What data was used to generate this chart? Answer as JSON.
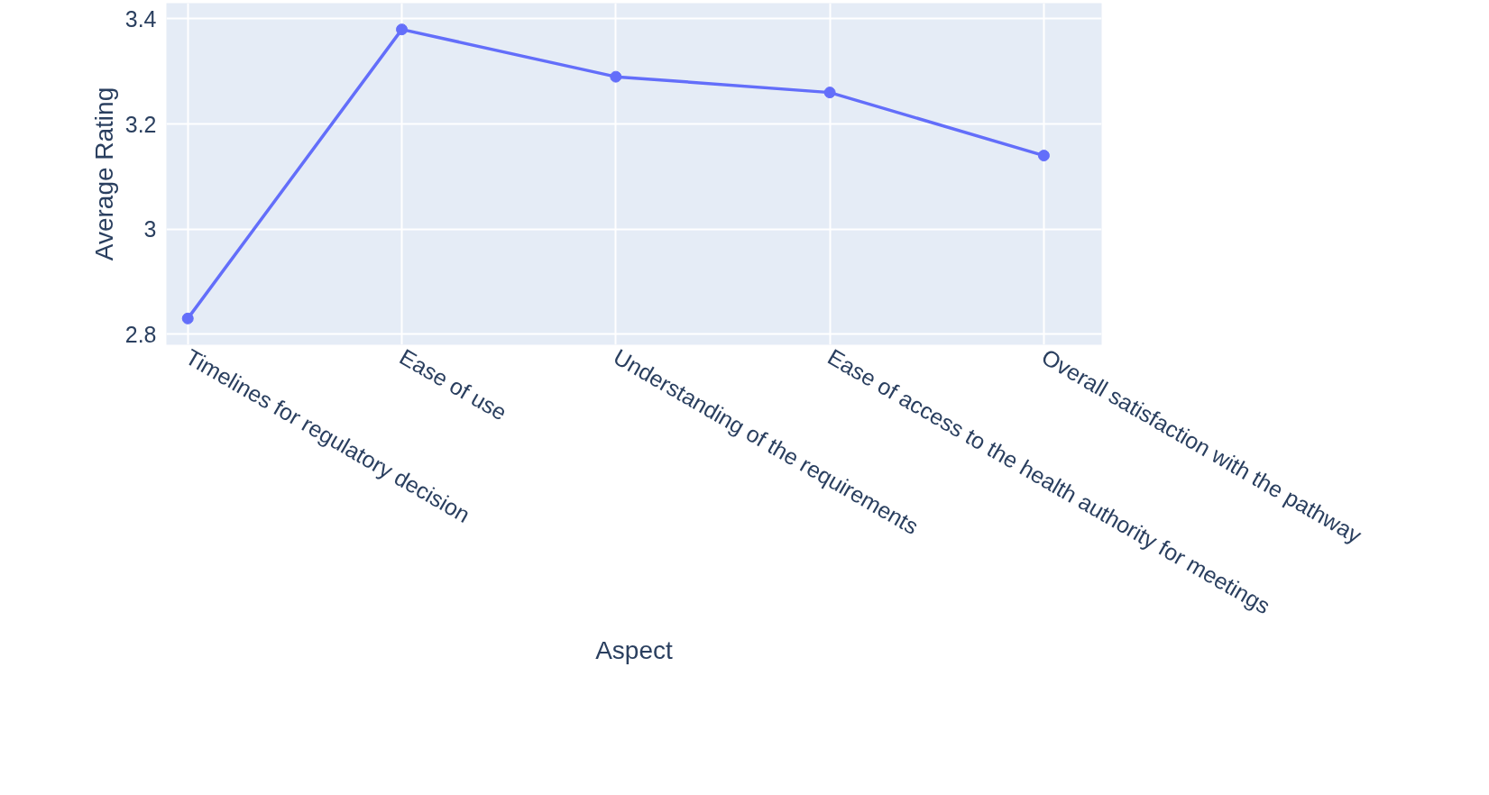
{
  "chart_data": {
    "type": "line",
    "xlabel": "Aspect",
    "ylabel": "Average Rating",
    "categories": [
      "Timelines for regulatory decision",
      "Ease of use",
      "Understanding of the requirements",
      "Ease of access to the health authority for meetings",
      "Overall satisfaction with the pathway"
    ],
    "series": [
      {
        "color": "#636efa",
        "values": [
          2.83,
          3.38,
          3.29,
          3.26,
          3.14
        ]
      }
    ],
    "ylim": [
      2.78,
      3.43
    ],
    "yticks": [
      2.8,
      3,
      3.2,
      3.4
    ],
    "grid": true,
    "marker": "circle",
    "line_style": "solid"
  }
}
